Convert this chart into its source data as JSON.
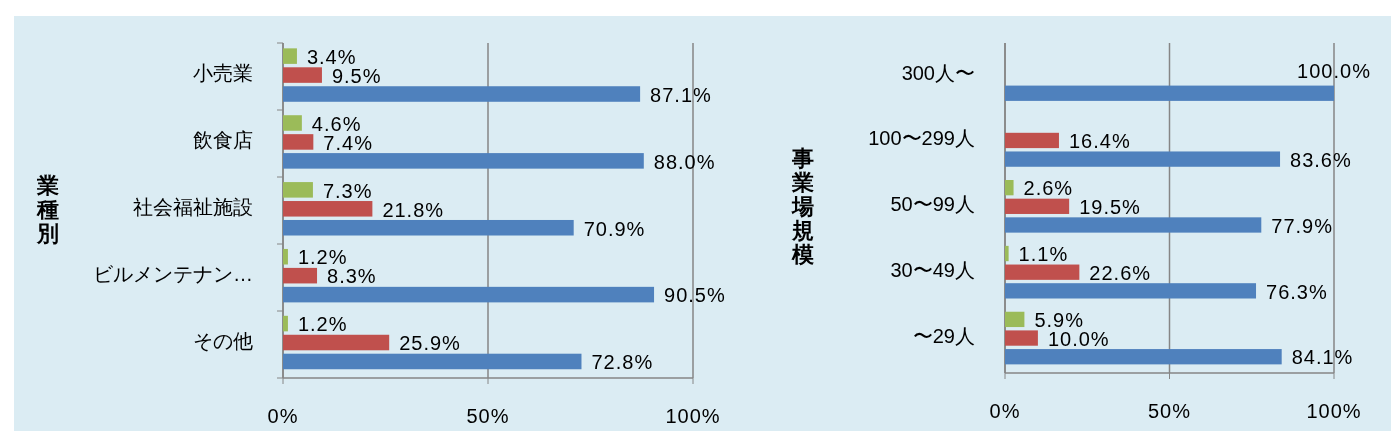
{
  "chart_data": [
    {
      "type": "bar",
      "orientation": "horizontal",
      "ylabel": "業種別",
      "categories": [
        "小売業",
        "飲食店",
        "社会福祉施設",
        "ビルメンテナン…",
        "その他"
      ],
      "xlim": [
        0,
        100
      ],
      "xticks": [
        {
          "value": 0,
          "label": "0%"
        },
        {
          "value": 50,
          "label": "50%"
        },
        {
          "value": 100,
          "label": "100%"
        }
      ],
      "grid": "x",
      "series": [
        {
          "color": "#9bbb59",
          "values": [
            3.4,
            4.6,
            7.3,
            1.2,
            1.2
          ],
          "value_labels": [
            "3.4%",
            "4.6%",
            "7.3%",
            "1.2%",
            "1.2%"
          ]
        },
        {
          "color": "#c0504d",
          "values": [
            9.5,
            7.4,
            21.8,
            8.3,
            25.9
          ],
          "value_labels": [
            "9.5%",
            "7.4%",
            "21.8%",
            "8.3%",
            "25.9%"
          ]
        },
        {
          "color": "#4f81bd",
          "values": [
            87.1,
            88.0,
            70.9,
            90.5,
            72.8
          ],
          "value_labels": [
            "87.1%",
            "88.0%",
            "70.9%",
            "90.5%",
            "72.8%"
          ]
        }
      ]
    },
    {
      "type": "bar",
      "orientation": "horizontal",
      "ylabel": "事業場規模",
      "categories": [
        "300人〜",
        "100〜299人",
        "50〜99人",
        "30〜49人",
        "〜29人"
      ],
      "xlim": [
        0,
        100
      ],
      "xticks": [
        {
          "value": 0,
          "label": "0%"
        },
        {
          "value": 50,
          "label": "50%"
        },
        {
          "value": 100,
          "label": "100%"
        }
      ],
      "grid": "x",
      "series": [
        {
          "color": "#9bbb59",
          "values": [
            null,
            null,
            2.6,
            1.1,
            5.9
          ],
          "value_labels": [
            null,
            null,
            "2.6%",
            "1.1%",
            "5.9%"
          ]
        },
        {
          "color": "#c0504d",
          "values": [
            null,
            16.4,
            19.5,
            22.6,
            10.0
          ],
          "value_labels": [
            null,
            "16.4%",
            "19.5%",
            "22.6%",
            "10.0%"
          ]
        },
        {
          "color": "#4f81bd",
          "values": [
            100.0,
            83.6,
            77.9,
            76.3,
            84.1
          ],
          "value_labels": [
            "100.0%",
            "83.6%",
            "77.9%",
            "76.3%",
            "84.1%"
          ]
        }
      ]
    }
  ]
}
